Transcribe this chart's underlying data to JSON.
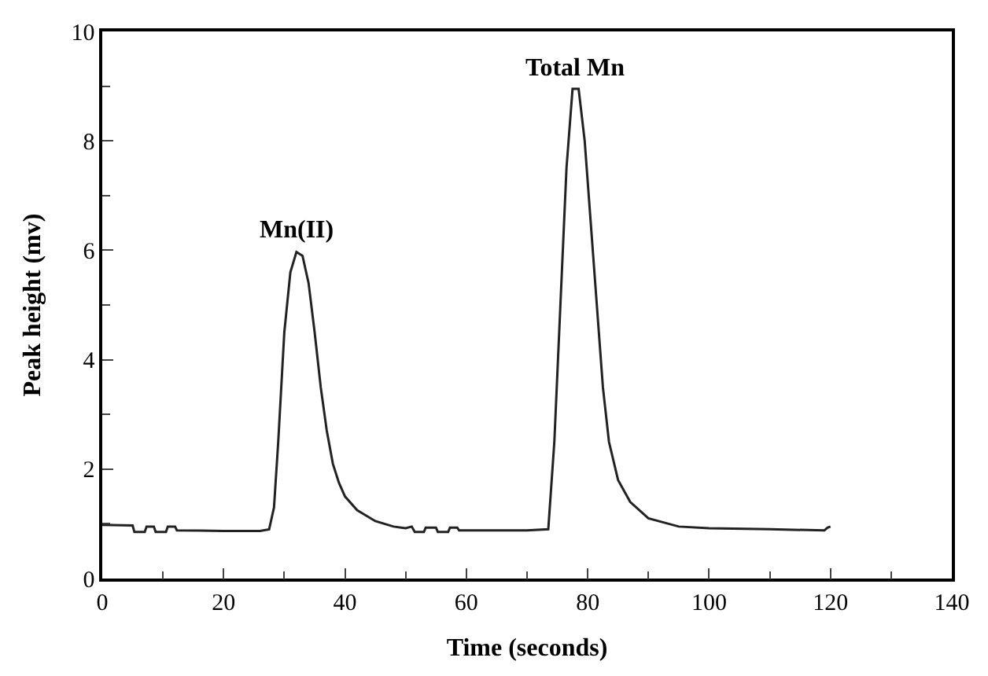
{
  "chart_data": {
    "type": "line",
    "xlabel": "Time (seconds)",
    "ylabel": "Peak height (mv)",
    "xlim": [
      0,
      140
    ],
    "xticks": [
      0,
      20,
      40,
      60,
      80,
      100,
      120,
      140
    ],
    "ylim": [
      0,
      10
    ],
    "yticks": [
      0,
      2,
      4,
      6,
      8,
      10
    ],
    "marker": "none",
    "line_style": "solid",
    "annotations": [
      {
        "text": "Mn(II)",
        "x": 32,
        "y": 5.97
      },
      {
        "text": "Total Mn",
        "x": 78,
        "y": 8.95
      }
    ],
    "series": [
      {
        "color": "#222222",
        "x": [
          0,
          5,
          5.3,
          7,
          7.3,
          8.5,
          8.8,
          10.5,
          10.8,
          12,
          12.3,
          20,
          26,
          27.5,
          28.3,
          29,
          30,
          31,
          32,
          33,
          34,
          35,
          36,
          37,
          38,
          39,
          40,
          42,
          45,
          48,
          50,
          51,
          51.5,
          53,
          53.3,
          55,
          55.3,
          57,
          57.3,
          58.5,
          58.8,
          65,
          70,
          73.5,
          74.5,
          75.5,
          76.5,
          77.5,
          78.5,
          79.5,
          80.5,
          81.5,
          82.5,
          83.5,
          85,
          87,
          90,
          95,
          100,
          110,
          119,
          119.5,
          120
        ],
        "values": [
          0.98,
          0.97,
          0.85,
          0.85,
          0.95,
          0.95,
          0.85,
          0.85,
          0.95,
          0.95,
          0.88,
          0.87,
          0.87,
          0.9,
          1.3,
          2.5,
          4.5,
          5.6,
          5.97,
          5.9,
          5.4,
          4.5,
          3.5,
          2.7,
          2.1,
          1.75,
          1.5,
          1.25,
          1.05,
          0.95,
          0.92,
          0.95,
          0.85,
          0.85,
          0.93,
          0.93,
          0.85,
          0.85,
          0.93,
          0.93,
          0.88,
          0.88,
          0.88,
          0.9,
          2.5,
          5,
          7.5,
          8.95,
          8.95,
          8,
          6.5,
          5,
          3.5,
          2.5,
          1.8,
          1.4,
          1.1,
          0.95,
          0.92,
          0.9,
          0.88,
          0.93,
          0.95
        ]
      }
    ]
  }
}
